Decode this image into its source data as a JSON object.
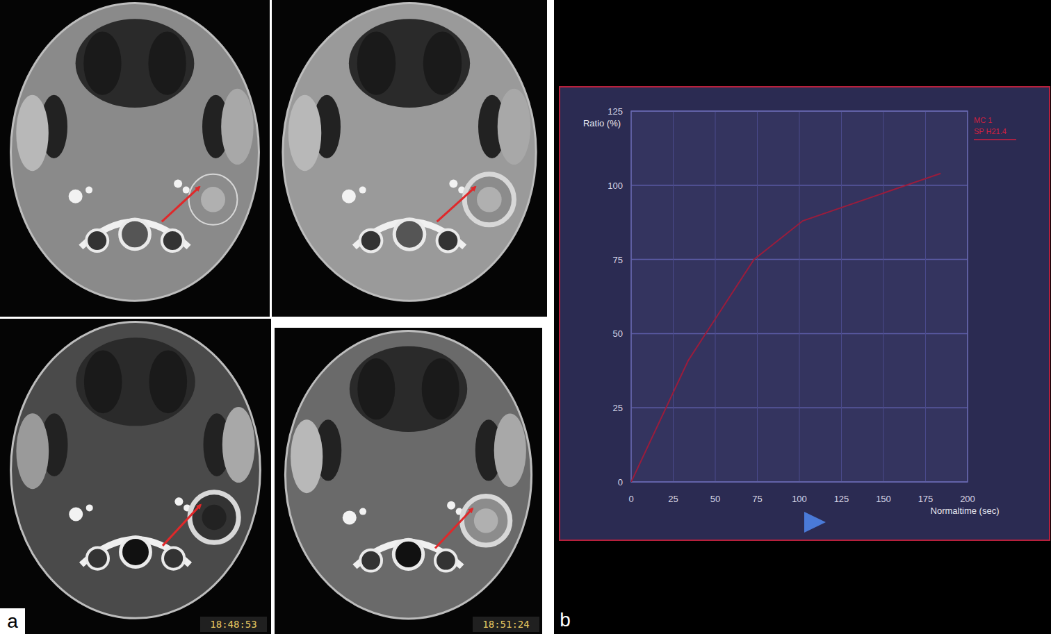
{
  "chart_data": {
    "type": "line",
    "x_label": "Normaltime (sec)",
    "y_label": "Ratio (%)",
    "x": [
      0,
      34,
      73,
      102,
      184
    ],
    "series": [
      {
        "name": "MC 1",
        "color": "#9b1c3c",
        "values": [
          0,
          41,
          75,
          88,
          104
        ]
      }
    ],
    "annotation": "SP H21.4",
    "xlim": [
      0,
      200
    ],
    "xticks": [
      0,
      25,
      50,
      75,
      100,
      125,
      150,
      175,
      200
    ],
    "ylim": [
      0,
      125
    ],
    "yticks": [
      0,
      25,
      50,
      75,
      100,
      125
    ],
    "grid": true,
    "legend": "upper right"
  },
  "panels": {
    "a": {
      "label": "a",
      "timestamps": [
        "18:48:53",
        "18:51:24"
      ]
    },
    "b": {
      "label": "b"
    }
  }
}
